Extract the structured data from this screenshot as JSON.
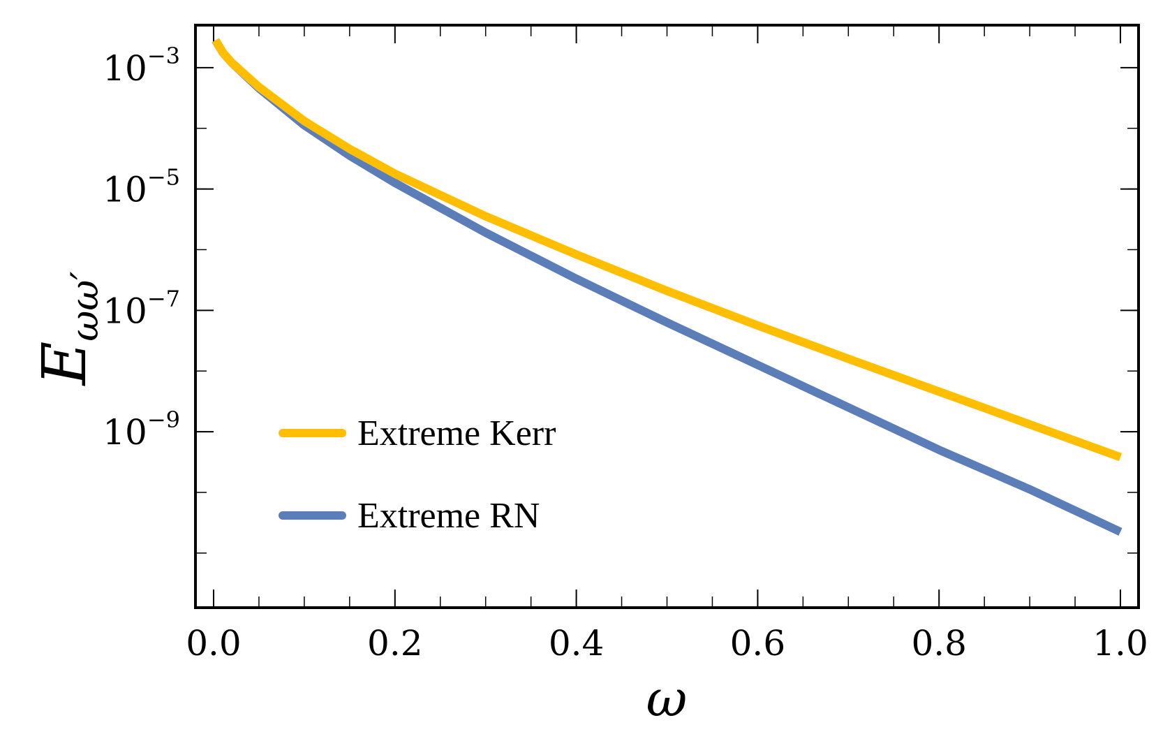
{
  "chart_data": {
    "type": "line",
    "title": "",
    "xlabel": "ω",
    "ylabel": {
      "base": "E",
      "subscript": "ωω′"
    },
    "xlim": [
      -0.02,
      1.02
    ],
    "ylim_log10": [
      -11.9,
      -2.3
    ],
    "y_scale": "log",
    "x_ticks": [
      {
        "value": 0.0,
        "label": "0.0"
      },
      {
        "value": 0.2,
        "label": "0.2"
      },
      {
        "value": 0.4,
        "label": "0.4"
      },
      {
        "value": 0.6,
        "label": "0.6"
      },
      {
        "value": 0.8,
        "label": "0.8"
      },
      {
        "value": 1.0,
        "label": "1.0"
      }
    ],
    "y_ticks": [
      {
        "exp": -3,
        "base": "10",
        "sup": "−3"
      },
      {
        "exp": -5,
        "base": "10",
        "sup": "−5"
      },
      {
        "exp": -7,
        "base": "10",
        "sup": "−7"
      },
      {
        "exp": -9,
        "base": "10",
        "sup": "−9"
      }
    ],
    "legend_position": "lower-left",
    "series": [
      {
        "name": "Extreme Kerr",
        "color": "#ffbf00",
        "x": [
          0.002,
          0.01,
          0.02,
          0.05,
          0.1,
          0.15,
          0.2,
          0.3,
          0.4,
          0.5,
          0.6,
          0.7,
          0.8,
          0.9,
          1.0
        ],
        "log10_y": [
          -2.55,
          -2.75,
          -2.92,
          -3.32,
          -3.88,
          -4.34,
          -4.75,
          -5.45,
          -6.08,
          -6.68,
          -7.25,
          -7.8,
          -8.34,
          -8.88,
          -9.42
        ]
      },
      {
        "name": "Extreme RN",
        "color": "#5b7db8",
        "x": [
          0.002,
          0.01,
          0.02,
          0.05,
          0.1,
          0.15,
          0.2,
          0.3,
          0.4,
          0.5,
          0.6,
          0.7,
          0.8,
          0.9,
          1.0
        ],
        "log10_y": [
          -2.55,
          -2.75,
          -2.92,
          -3.34,
          -3.95,
          -4.45,
          -4.9,
          -5.72,
          -6.48,
          -7.2,
          -7.9,
          -8.6,
          -9.3,
          -9.95,
          -10.65
        ]
      }
    ]
  }
}
